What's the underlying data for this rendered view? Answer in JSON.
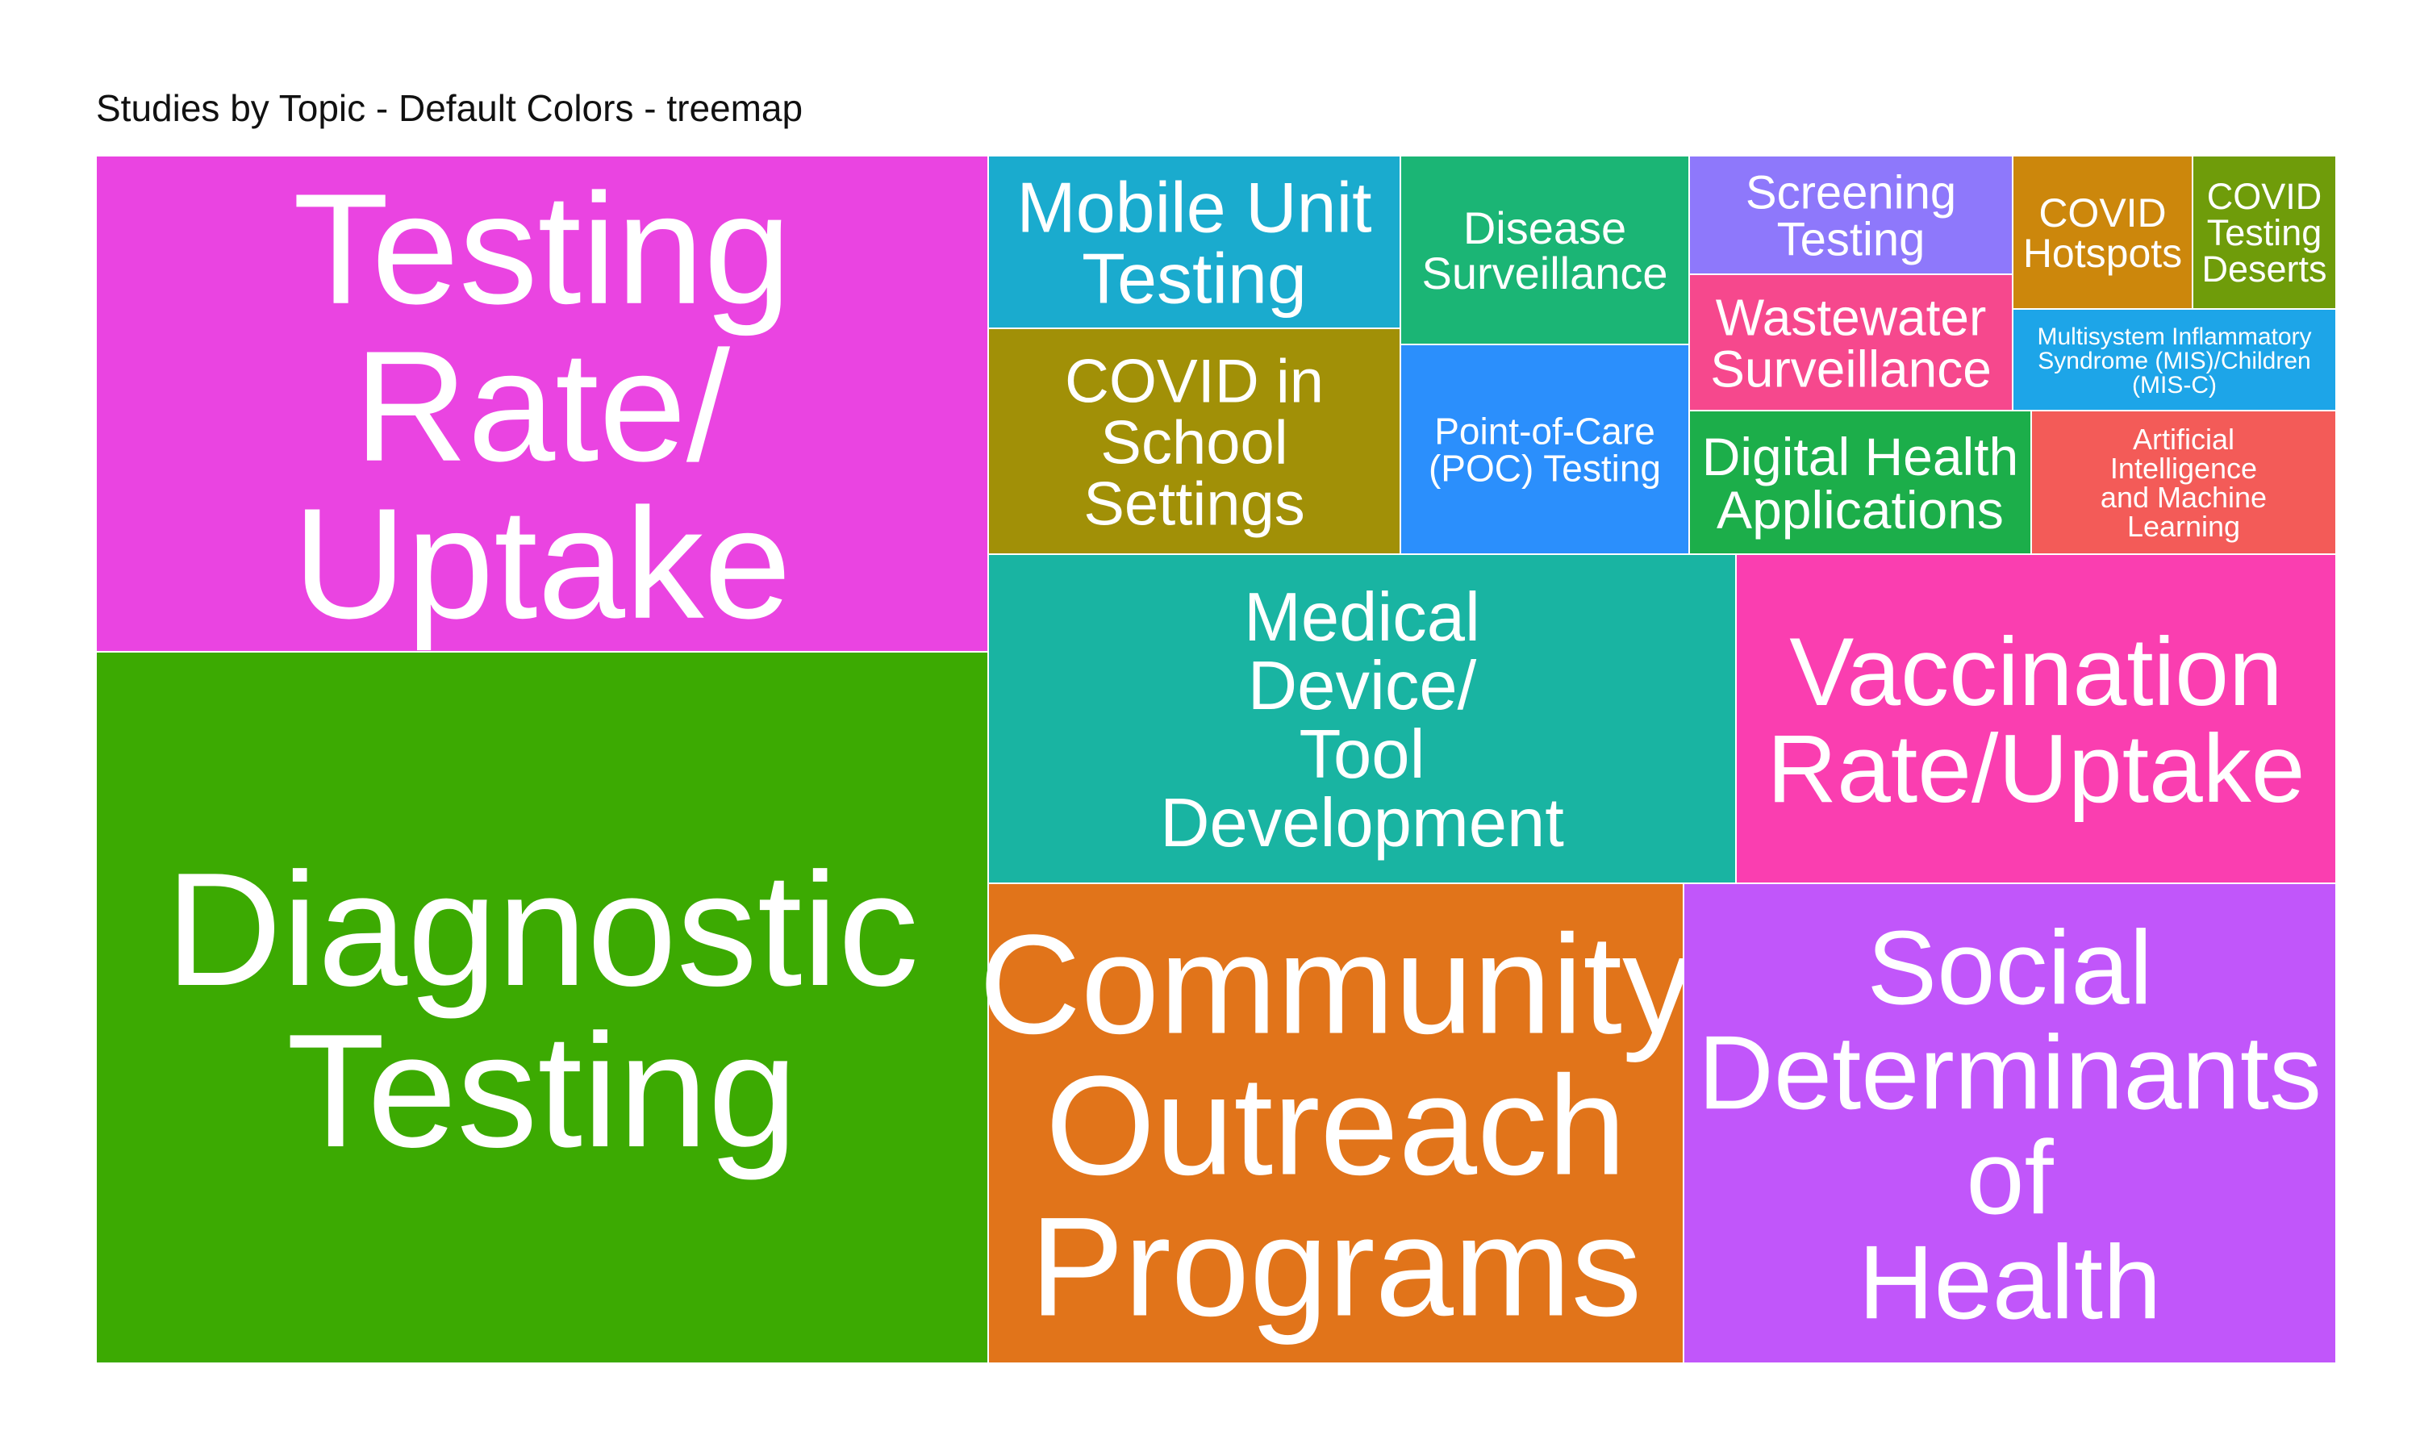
{
  "chart_data": {
    "type": "treemap",
    "title": "Studies by Topic - Default Colors - treemap",
    "nodes": [
      {
        "label": "Diagnostic Testing",
        "lines": [
          "Diagnostic",
          "Testing"
        ],
        "color": "#3caa02"
      },
      {
        "label": "Testing Rate/ Uptake",
        "lines": [
          "Testing",
          "Rate/",
          "Uptake"
        ],
        "color": "#ea44e1"
      },
      {
        "label": "Community Outreach Programs",
        "lines": [
          "Community",
          "Outreach",
          "Programs"
        ],
        "color": "#e1741a"
      },
      {
        "label": "Social Determinants of Health",
        "lines": [
          "Social",
          "Determinants",
          "of",
          "Health"
        ],
        "color": "#c156fa"
      },
      {
        "label": "Medical Device/ Tool Development",
        "lines": [
          "Medical",
          "Device/",
          "Tool",
          "Development"
        ],
        "color": "#19b4a2"
      },
      {
        "label": "Vaccination Rate/Uptake",
        "lines": [
          "Vaccination",
          "Rate/Uptake"
        ],
        "color": "#fa3eb0"
      },
      {
        "label": "Mobile Unit Testing",
        "lines": [
          "Mobile Unit",
          "Testing"
        ],
        "color": "#1aabce"
      },
      {
        "label": "COVID in School Settings",
        "lines": [
          "COVID in",
          "School",
          "Settings"
        ],
        "color": "#a19007"
      },
      {
        "label": "Disease Surveillance",
        "lines": [
          "Disease",
          "Surveillance"
        ],
        "color": "#1bb575"
      },
      {
        "label": "Point-of-Care (POC) Testing",
        "lines": [
          "Point-of-Care",
          "(POC) Testing"
        ],
        "color": "#2b8ffc"
      },
      {
        "label": "Screening Testing",
        "lines": [
          "Screening",
          "Testing"
        ],
        "color": "#8e78fb"
      },
      {
        "label": "Wastewater Surveillance",
        "lines": [
          "Wastewater",
          "Surveillance"
        ],
        "color": "#f6488d"
      },
      {
        "label": "Digital Health Applications",
        "lines": [
          "Digital Health",
          "Applications"
        ],
        "color": "#1cae4a"
      },
      {
        "label": "COVID Hotspots",
        "lines": [
          "COVID",
          "Hotspots"
        ],
        "color": "#cc870c"
      },
      {
        "label": "COVID Testing Deserts",
        "lines": [
          "COVID",
          "Testing",
          "Deserts"
        ],
        "color": "#6f9c0a"
      },
      {
        "label": "Multisystem Inflammatory Syndrome (MIS)/Children (MIS-C)",
        "lines": [
          "Multisystem Inflammatory",
          "Syndrome (MIS)/Children",
          "(MIS-C)"
        ],
        "color": "#1da5e8"
      },
      {
        "label": "Artificial Intelligence and Machine Learning",
        "lines": [
          "Artificial",
          "Intelligence",
          "and Machine",
          "Learning"
        ],
        "color": "#f35b58"
      }
    ]
  }
}
